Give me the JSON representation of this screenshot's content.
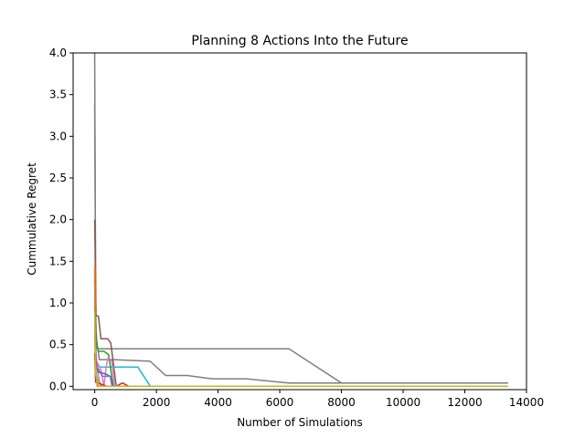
{
  "chart_data": {
    "type": "line",
    "title": "Planning 8 Actions Into the Future",
    "xlabel": "Number of Simulations",
    "ylabel": "Cummulative Regret",
    "xlim": [
      -700,
      14000
    ],
    "ylim": [
      -0.04,
      4.0
    ],
    "x_ticks": [
      0,
      2000,
      4000,
      6000,
      8000,
      10000,
      12000,
      14000
    ],
    "x_tick_labels": [
      "0",
      "2000",
      "4000",
      "6000",
      "8000",
      "10000",
      "12000",
      "14000"
    ],
    "y_ticks": [
      0.0,
      0.5,
      1.0,
      1.5,
      2.0,
      2.5,
      3.0,
      3.5,
      4.0
    ],
    "y_tick_labels": [
      "0.0",
      "0.5",
      "1.0",
      "1.5",
      "2.0",
      "2.5",
      "3.0",
      "3.5",
      "4.0"
    ],
    "grid": false,
    "legend": "none",
    "series": [
      {
        "color": "#7f7f7f",
        "x": [
          0,
          30,
          80,
          600,
          6300,
          8000,
          13400
        ],
        "y": [
          4.0,
          0.8,
          0.45,
          0.45,
          0.45,
          0.04,
          0.04
        ]
      },
      {
        "color": "#7f7f7f",
        "x": [
          0,
          40,
          150,
          600,
          1800,
          2300,
          3000,
          3800,
          4900,
          6300,
          13400
        ],
        "y": [
          3.4,
          0.6,
          0.32,
          0.32,
          0.3,
          0.13,
          0.13,
          0.09,
          0.09,
          0.04,
          0.04
        ]
      },
      {
        "color": "#8c564b",
        "x": [
          0,
          40,
          120,
          200,
          420,
          520,
          700,
          13400
        ],
        "y": [
          2.0,
          0.85,
          0.84,
          0.57,
          0.57,
          0.52,
          0.0,
          0.0
        ]
      },
      {
        "color": "#17becf",
        "x": [
          0,
          30,
          150,
          700,
          1400,
          1800,
          13400
        ],
        "y": [
          1.35,
          0.3,
          0.23,
          0.23,
          0.23,
          0.0,
          0.0
        ]
      },
      {
        "color": "#17becf",
        "x": [
          0,
          20,
          90,
          250,
          13400
        ],
        "y": [
          1.1,
          0.2,
          0.08,
          0.0,
          0.0
        ]
      },
      {
        "color": "#2ca02c",
        "x": [
          0,
          40,
          120,
          300,
          450,
          600,
          13400
        ],
        "y": [
          0.95,
          0.55,
          0.42,
          0.42,
          0.38,
          0.0,
          0.0
        ]
      },
      {
        "color": "#e377c2",
        "x": [
          0,
          60,
          200,
          300,
          380,
          440,
          550,
          650,
          13400
        ],
        "y": [
          0.7,
          0.3,
          0.2,
          0.0,
          0.25,
          0.35,
          0.3,
          0.0,
          0.0
        ]
      },
      {
        "color": "#e377c2",
        "x": [
          0,
          80,
          180,
          13400
        ],
        "y": [
          0.5,
          0.22,
          0.0,
          0.0
        ]
      },
      {
        "color": "#1f77b4",
        "x": [
          0,
          30,
          100,
          350,
          500,
          600,
          13400
        ],
        "y": [
          1.3,
          0.35,
          0.17,
          0.15,
          0.12,
          0.0,
          0.0
        ]
      },
      {
        "color": "#9467bd",
        "x": [
          0,
          50,
          250,
          380,
          500,
          560,
          13400
        ],
        "y": [
          0.6,
          0.25,
          0.12,
          0.12,
          0.12,
          0.0,
          0.0
        ]
      },
      {
        "color": "#d62728",
        "x": [
          0,
          30,
          400,
          700,
          900,
          1100,
          13400
        ],
        "y": [
          0.4,
          0.05,
          0.0,
          0.0,
          0.04,
          0.0,
          0.0
        ]
      },
      {
        "color": "#ff7f0e",
        "x": [
          0,
          20,
          80,
          13400
        ],
        "y": [
          1.45,
          0.25,
          0.0,
          0.0
        ]
      },
      {
        "color": "#bcbd22",
        "x": [
          0,
          25,
          120,
          13400
        ],
        "y": [
          0.9,
          0.15,
          0.0,
          0.0
        ]
      }
    ]
  }
}
